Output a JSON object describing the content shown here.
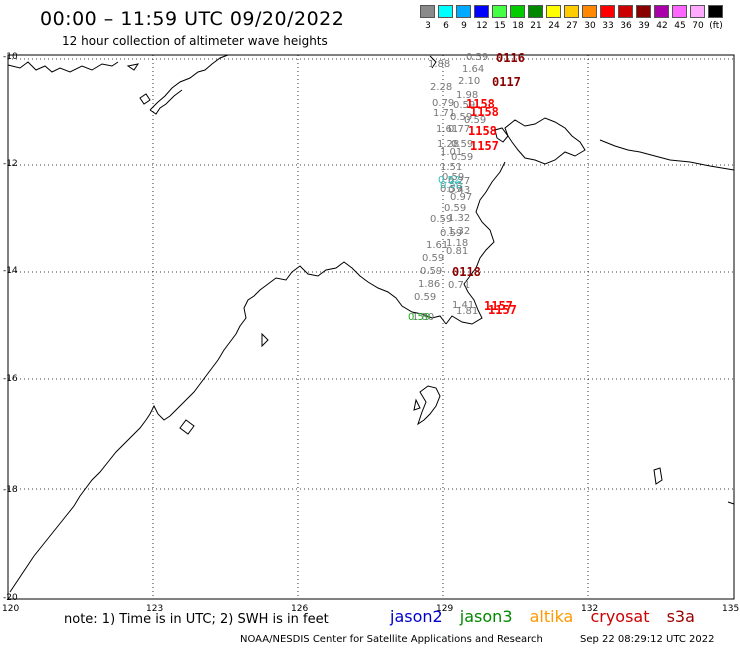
{
  "header": {
    "title": "00:00 – 11:59 UTC 09/20/2022",
    "subtitle": "12 hour collection of altimeter wave heights"
  },
  "colorbar": {
    "swatches": [
      {
        "label": "3",
        "color": "#8a8a8a"
      },
      {
        "label": "6",
        "color": "#00ffff"
      },
      {
        "label": "9",
        "color": "#00aaff"
      },
      {
        "label": "12",
        "color": "#0000ff"
      },
      {
        "label": "15",
        "color": "#44ff44"
      },
      {
        "label": "18",
        "color": "#00cc00"
      },
      {
        "label": "21",
        "color": "#008800"
      },
      {
        "label": "24",
        "color": "#ffff00"
      },
      {
        "label": "27",
        "color": "#ffcc00"
      },
      {
        "label": "30",
        "color": "#ff8800"
      },
      {
        "label": "33",
        "color": "#ff0000"
      },
      {
        "label": "36",
        "color": "#cc0000"
      },
      {
        "label": "39",
        "color": "#880000"
      },
      {
        "label": "42",
        "color": "#aa00aa"
      },
      {
        "label": "45",
        "color": "#ff66ff"
      },
      {
        "label": "70",
        "color": "#ffaaff"
      },
      {
        "label": "(ft)",
        "color": "#000000"
      }
    ]
  },
  "axes": {
    "lat_labels": [
      "-10",
      "-12",
      "-14",
      "-16",
      "-18",
      "-20"
    ],
    "lon_labels": [
      "120",
      "123",
      "126",
      "129",
      "132",
      "135"
    ]
  },
  "observations": {
    "wave_heights": [
      "0.59",
      "1.88",
      "1.64",
      "2.28",
      "2.10",
      "1.98",
      "0.79",
      "0.59",
      "1.71",
      "0.59",
      "0.59",
      "1.61",
      "0.77",
      "1.28",
      "0.59",
      "1.01",
      "0.59",
      "1.51",
      "0.59",
      "0.27",
      "0.59",
      "0.43",
      "0.97",
      "0.59",
      "0.59",
      "1.32",
      "0.59",
      "1.32",
      "1.61",
      "1.18",
      "0.81",
      "0.59",
      "0.59",
      "1.86",
      "0.71",
      "0.59",
      "1.41",
      "1.81",
      "1.80"
    ],
    "colored_heights": [
      "0.52",
      "0.50",
      "0.59"
    ],
    "times": [
      "0116",
      "0117",
      "1158",
      "1158",
      "1158",
      "1157",
      "0118",
      "1157",
      "1157"
    ]
  },
  "footer": {
    "note": "note:  1) Time is in UTC;  2) SWH is in feet",
    "satellites": [
      {
        "name": "jason2",
        "color": "#0000cc"
      },
      {
        "name": "jason3",
        "color": "#008800"
      },
      {
        "name": "altika",
        "color": "#ff9900"
      },
      {
        "name": "cryosat",
        "color": "#cc0000"
      },
      {
        "name": "s3a",
        "color": "#990000"
      }
    ],
    "credit": "NOAA/NESDIS Center for Satellite Applications and Research",
    "timestamp": "Sep 22 08:29:12 UTC 2022"
  },
  "colors": {
    "time_dark": "#8b0000",
    "time_red": "#ff0000",
    "height_gray": "#777777",
    "height_cyan": "#33bbbb",
    "height_green": "#22aa22"
  }
}
